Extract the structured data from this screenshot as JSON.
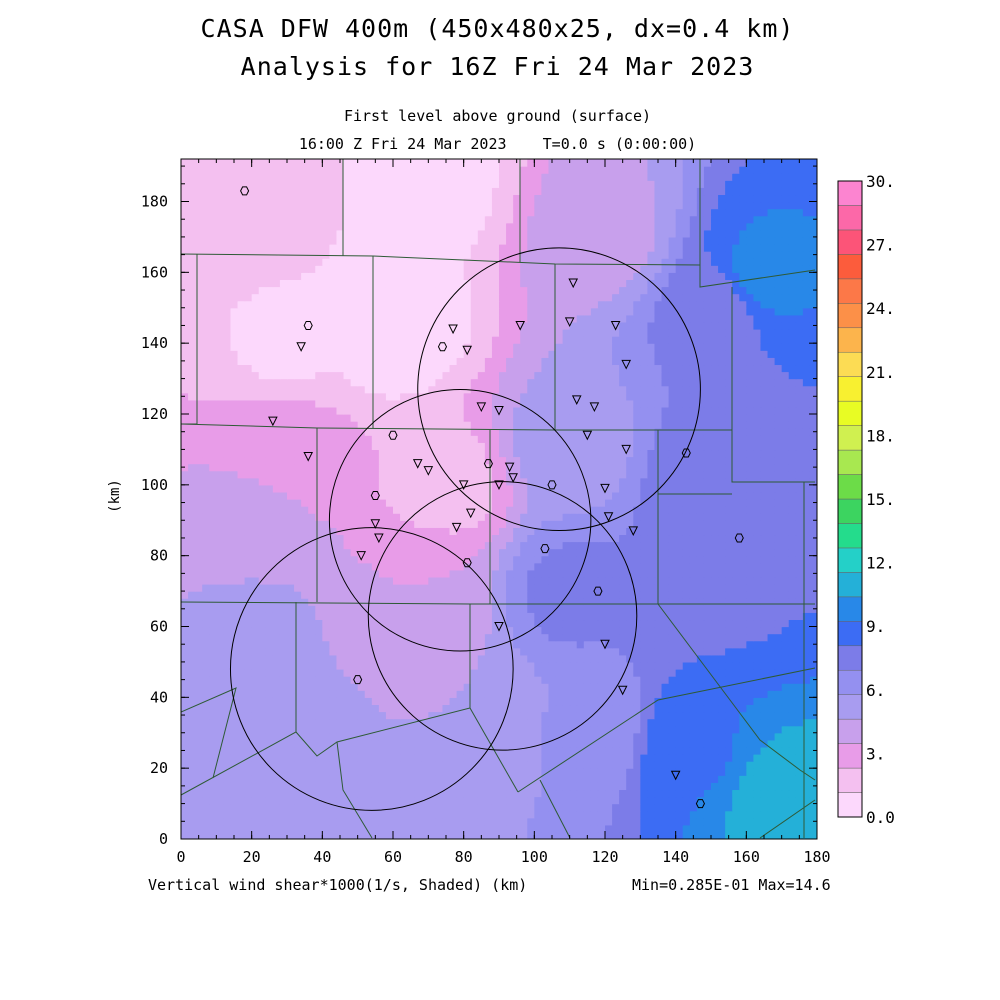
{
  "chart_data": {
    "type": "heatmap",
    "title": "CASA DFW 400m (450x480x25, dx=0.4 km)",
    "subtitle": "Analysis for 16Z Fri 24 Mar 2023",
    "level_label": "First level above ground (surface)",
    "time_label": "16:00 Z Fri 24 Mar 2023    T=0.0 s (0:00:00)",
    "xlabel": "Vertical wind shear*1000(1/s, Shaded)  (km)",
    "ylabel": "(km)",
    "minmax_label": "Min=0.285E-01 Max=14.6",
    "xlim": [
      0,
      180
    ],
    "ylim": [
      0,
      192
    ],
    "x_ticks": [
      "0",
      "20",
      "40",
      "60",
      "80",
      "100",
      "120",
      "140",
      "160",
      "180"
    ],
    "y_ticks": [
      "0",
      "20",
      "40",
      "60",
      "80",
      "100",
      "120",
      "140",
      "160",
      "180"
    ],
    "colorbar": {
      "range": [
        0,
        30
      ],
      "step": 1.5,
      "tick_labels": [
        "0.0",
        "3.",
        "6.",
        "9.",
        "12.",
        "15.",
        "18.",
        "21.",
        "24.",
        "27.",
        "30."
      ],
      "colors": [
        "#fcd8fc",
        "#f4c0f0",
        "#e89ce8",
        "#c8a0ec",
        "#a89cf0",
        "#9490f0",
        "#7c7ce8",
        "#3c6cf4",
        "#2888e8",
        "#24b0d8",
        "#24d0c8",
        "#24dc8c",
        "#3cd460",
        "#6cdc48",
        "#a8e850",
        "#d0f050",
        "#e8fc24",
        "#f8f030",
        "#fcdc54",
        "#fcb44c",
        "#fc9048",
        "#fc7848",
        "#fc5c3c",
        "#fc5478",
        "#fc68a8",
        "#fc84d0"
      ]
    },
    "field_samples": [
      {
        "x": 18,
        "y": 180,
        "value": 2.3
      },
      {
        "x": 70,
        "y": 185,
        "value": 1.0
      },
      {
        "x": 60,
        "y": 145,
        "value": 0.6
      },
      {
        "x": 30,
        "y": 140,
        "value": 1.3
      },
      {
        "x": 120,
        "y": 170,
        "value": 5.4
      },
      {
        "x": 150,
        "y": 150,
        "value": 9.5
      },
      {
        "x": 165,
        "y": 160,
        "value": 12.4
      },
      {
        "x": 30,
        "y": 110,
        "value": 3.8
      },
      {
        "x": 75,
        "y": 100,
        "value": 2.4
      },
      {
        "x": 20,
        "y": 90,
        "value": 5.0
      },
      {
        "x": 110,
        "y": 110,
        "value": 6.8
      },
      {
        "x": 150,
        "y": 100,
        "value": 10.2
      },
      {
        "x": 20,
        "y": 60,
        "value": 6.4
      },
      {
        "x": 70,
        "y": 70,
        "value": 4.5
      },
      {
        "x": 110,
        "y": 70,
        "value": 9.3
      },
      {
        "x": 150,
        "y": 70,
        "value": 10.4
      },
      {
        "x": 30,
        "y": 30,
        "value": 6.3
      },
      {
        "x": 80,
        "y": 35,
        "value": 6.0
      },
      {
        "x": 115,
        "y": 30,
        "value": 7.6
      },
      {
        "x": 145,
        "y": 25,
        "value": 11.8
      },
      {
        "x": 170,
        "y": 12,
        "value": 14.3
      }
    ],
    "radar_rings": [
      {
        "cx": 107,
        "cy": 127,
        "r": 40
      },
      {
        "cx": 79,
        "cy": 90,
        "r": 37
      },
      {
        "cx": 91,
        "cy": 63,
        "r": 38
      },
      {
        "cx": 54,
        "cy": 48,
        "r": 40
      }
    ],
    "station_triangles": [
      [
        34,
        139
      ],
      [
        26,
        118
      ],
      [
        36,
        108
      ],
      [
        77,
        144
      ],
      [
        81,
        138
      ],
      [
        96,
        145
      ],
      [
        110,
        146
      ],
      [
        111,
        157
      ],
      [
        123,
        145
      ],
      [
        126,
        134
      ],
      [
        112,
        124
      ],
      [
        117,
        122
      ],
      [
        115,
        114
      ],
      [
        126,
        110
      ],
      [
        85,
        122
      ],
      [
        90,
        121
      ],
      [
        67,
        106
      ],
      [
        70,
        104
      ],
      [
        93,
        105
      ],
      [
        94,
        102
      ],
      [
        90,
        100
      ],
      [
        80,
        100
      ],
      [
        120,
        99
      ],
      [
        82,
        92
      ],
      [
        78,
        88
      ],
      [
        121,
        91
      ],
      [
        128,
        87
      ],
      [
        55,
        89
      ],
      [
        56,
        85
      ],
      [
        51,
        80
      ],
      [
        90,
        60
      ],
      [
        120,
        55
      ],
      [
        125,
        42
      ],
      [
        140,
        18
      ]
    ],
    "station_circles": [
      [
        18,
        183
      ],
      [
        36,
        145
      ],
      [
        74,
        139
      ],
      [
        60,
        114
      ],
      [
        87,
        106
      ],
      [
        105,
        100
      ],
      [
        55,
        97
      ],
      [
        103,
        82
      ],
      [
        81,
        78
      ],
      [
        118,
        70
      ],
      [
        143,
        109
      ],
      [
        158,
        85
      ],
      [
        50,
        45
      ],
      [
        147,
        10
      ]
    ]
  }
}
